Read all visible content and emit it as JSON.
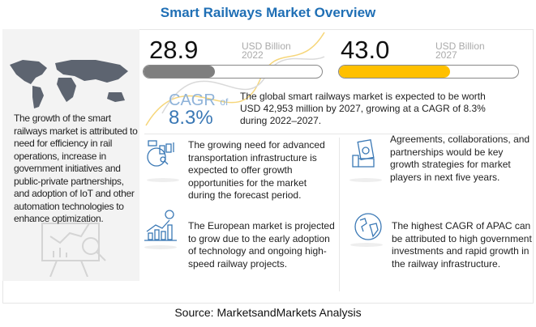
{
  "title": "Smart Railways Market Overview",
  "left_panel": {
    "text": "The growth of the smart railways market is attributed to need for efficiency in rail operations, increase in government initiatives and public-private partnerships, and adoption of IoT and other automation technologies to enhance optimization."
  },
  "stats": [
    {
      "value": "28.9",
      "unit": "USD Billion",
      "year": "2022",
      "fill_percent": 40,
      "color": "#7f7f7f"
    },
    {
      "value": "43.0",
      "unit": "USD Billion",
      "year": "2027",
      "fill_percent": 62,
      "color": "#ffc000"
    }
  ],
  "cagr": {
    "label": "CAGR",
    "of": "of",
    "value": "8.3%"
  },
  "description": "The global smart railways market is expected to be worth USD 42,953 million by 2027, growing at a CAGR of 8.3% during 2022–2027.",
  "insights": [
    {
      "icon": "analytics-icon",
      "text": "The growing need for advanced transportation infrastructure is expected to offer growth opportunities for the market during the forecast period."
    },
    {
      "icon": "money-hand-icon",
      "text": "Agreements, collaborations, and partnerships would be key growth strategies for market players in next five years."
    },
    {
      "icon": "growth-chart-icon",
      "text": "The European market is projected to grow due to the early adoption of technology and ongoing high-speed railway projects."
    },
    {
      "icon": "globe-icon",
      "text": "The highest CAGR of APAC can be attributed to high government investments and rapid growth in the railway infrastructure."
    }
  ],
  "source": "Source: MarketsandMarkets Analysis",
  "colors": {
    "title": "#1f6fb5",
    "accent": "#3a78b5",
    "bar_2022": "#7f7f7f",
    "bar_2027": "#ffc000"
  }
}
